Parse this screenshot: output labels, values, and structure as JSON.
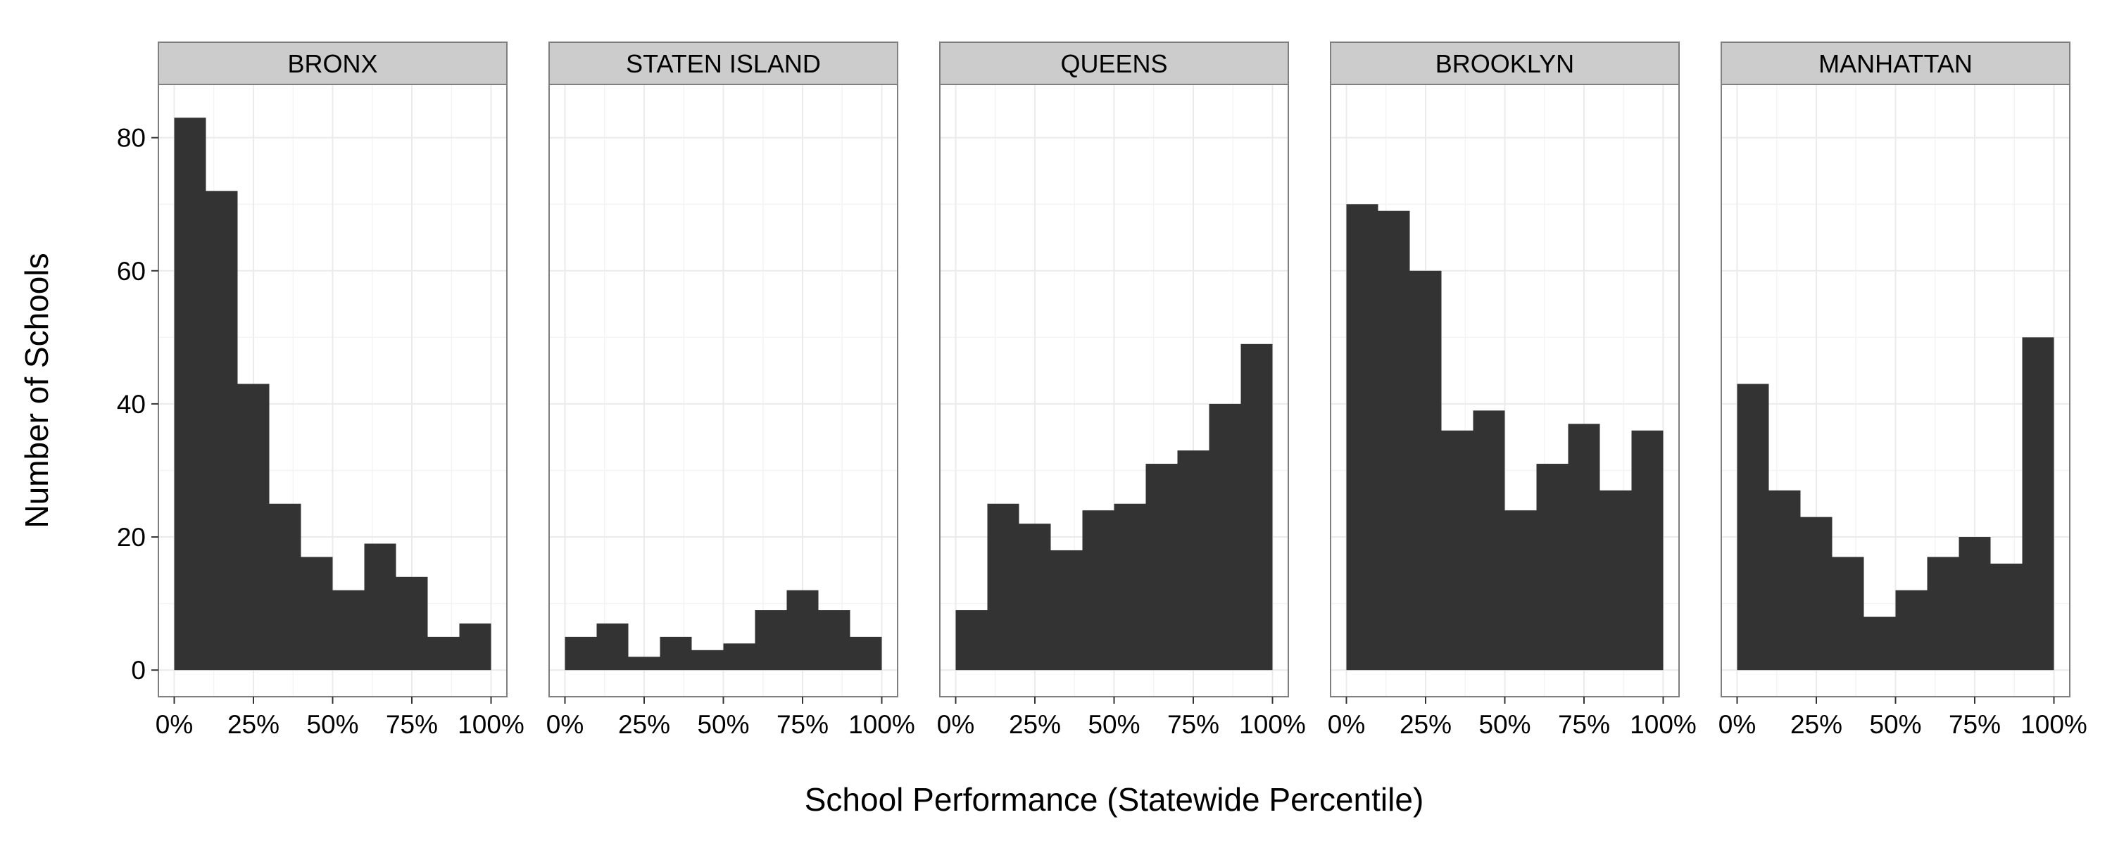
{
  "chart_data": {
    "type": "bar",
    "xlabel": "School Performance (Statewide Percentile)",
    "ylabel": "Number of Schools",
    "ylim": [
      -4,
      88
    ],
    "xlim": [
      -0.05,
      1.05
    ],
    "y_ticks": [
      0,
      20,
      40,
      60,
      80
    ],
    "y_tick_labels": [
      "0",
      "20",
      "40",
      "60",
      "80"
    ],
    "x_ticks": [
      0,
      0.25,
      0.5,
      0.75,
      1.0
    ],
    "x_tick_labels": [
      "0%",
      "25%",
      "50%",
      "75%",
      "100%"
    ],
    "bin_edges": [
      0,
      0.1,
      0.2,
      0.3,
      0.4,
      0.5,
      0.6,
      0.7,
      0.8,
      0.9,
      1.0
    ],
    "bar_color": "#333333",
    "panel_background": "#ffffff",
    "grid": true,
    "grid_color": "#ebebeb",
    "strip_fill": "#cccccc",
    "panels": [
      {
        "name": "BRONX",
        "values": [
          83,
          72,
          43,
          25,
          17,
          12,
          19,
          14,
          5,
          7
        ]
      },
      {
        "name": "STATEN ISLAND",
        "values": [
          5,
          7,
          2,
          5,
          3,
          4,
          9,
          12,
          9,
          5
        ]
      },
      {
        "name": "QUEENS",
        "values": [
          9,
          25,
          22,
          18,
          24,
          25,
          31,
          33,
          40,
          49
        ]
      },
      {
        "name": "BROOKLYN",
        "values": [
          70,
          69,
          60,
          36,
          39,
          24,
          31,
          37,
          27,
          36
        ]
      },
      {
        "name": "MANHATTAN",
        "values": [
          43,
          27,
          23,
          17,
          8,
          12,
          17,
          20,
          16,
          50
        ]
      }
    ]
  }
}
